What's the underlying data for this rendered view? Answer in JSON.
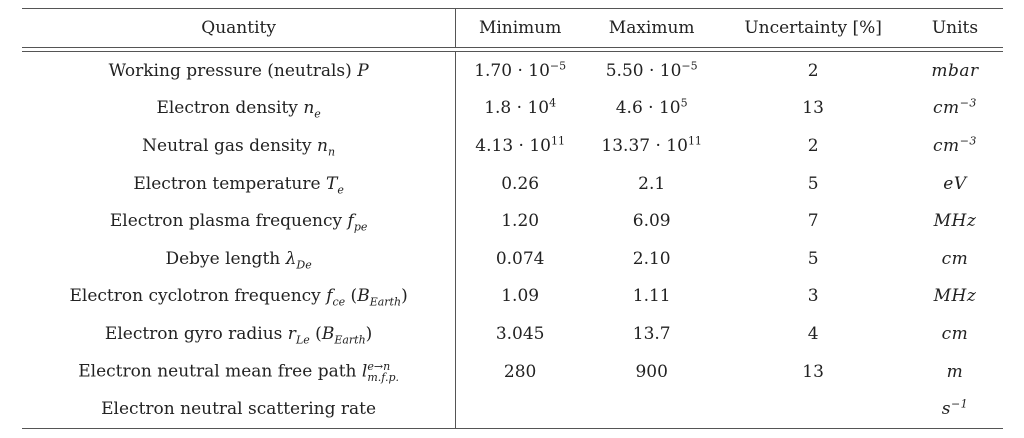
{
  "table": {
    "headers": {
      "quantity": "Quantity",
      "minimum": "Minimum",
      "maximum": "Maximum",
      "uncertainty": "Uncertainty [%]",
      "units": "Units"
    },
    "rows": [
      {
        "label": "Working pressure (neutrals)",
        "sym": "P",
        "sub": "",
        "extra": "",
        "min_m": "1.70 · 10",
        "min_e": "−5",
        "max_m": "5.50 · 10",
        "max_e": "−5",
        "unc": "2",
        "unit": "mbar",
        "unit_e": ""
      },
      {
        "label": "Electron density",
        "sym": "n",
        "sub": "e",
        "extra": "",
        "min_m": "1.8 · 10",
        "min_e": "4",
        "max_m": "4.6 · 10",
        "max_e": "5",
        "unc": "13",
        "unit": "cm",
        "unit_e": "−3"
      },
      {
        "label": "Neutral gas density",
        "sym": "n",
        "sub": "n",
        "extra": "",
        "min_m": "4.13 · 10",
        "min_e": "11",
        "max_m": "13.37 · 10",
        "max_e": "11",
        "unc": "2",
        "unit": "cm",
        "unit_e": "−3"
      },
      {
        "label": "Electron temperature",
        "sym": "T",
        "sub": "e",
        "extra": "",
        "min_m": "0.26",
        "min_e": "",
        "max_m": "2.1",
        "max_e": "",
        "unc": "5",
        "unit": "eV",
        "unit_e": ""
      },
      {
        "label": "Electron plasma frequency",
        "sym": "f",
        "sub": "pe",
        "extra": "",
        "min_m": "1.20",
        "min_e": "",
        "max_m": "6.09",
        "max_e": "",
        "unc": "7",
        "unit": "MHz",
        "unit_e": ""
      },
      {
        "label": "Debye length",
        "sym": "λ",
        "sub": "De",
        "extra": "",
        "min_m": "0.074",
        "min_e": "",
        "max_m": "2.10",
        "max_e": "",
        "unc": "5",
        "unit": "cm",
        "unit_e": ""
      },
      {
        "label": "Electron cyclotron frequency",
        "sym": "f",
        "sub": "ce",
        "extra": "(B_Earth)",
        "min_m": "1.09",
        "min_e": "",
        "max_m": "1.11",
        "max_e": "",
        "unc": "3",
        "unit": "MHz",
        "unit_e": ""
      },
      {
        "label": "Electron gyro radius",
        "sym": "r",
        "sub": "Le",
        "extra": "(B_Earth)",
        "min_m": "3.045",
        "min_e": "",
        "max_m": "13.7",
        "max_e": "",
        "unc": "4",
        "unit": "cm",
        "unit_e": ""
      },
      {
        "label": "Electron neutral mean free path",
        "sym": "l",
        "sub": "m.f.p.",
        "sup": "e→n",
        "extra": "",
        "min_m": "280",
        "min_e": "",
        "max_m": "900",
        "max_e": "",
        "unc": "13",
        "unit": "m",
        "unit_e": ""
      },
      {
        "label": "Electron neutral scattering rate",
        "sym": "",
        "sub": "",
        "extra": "",
        "min_m": "",
        "min_e": "",
        "max_m": "",
        "max_e": "",
        "unc": "",
        "unit": "s",
        "unit_e": "−1"
      }
    ]
  }
}
